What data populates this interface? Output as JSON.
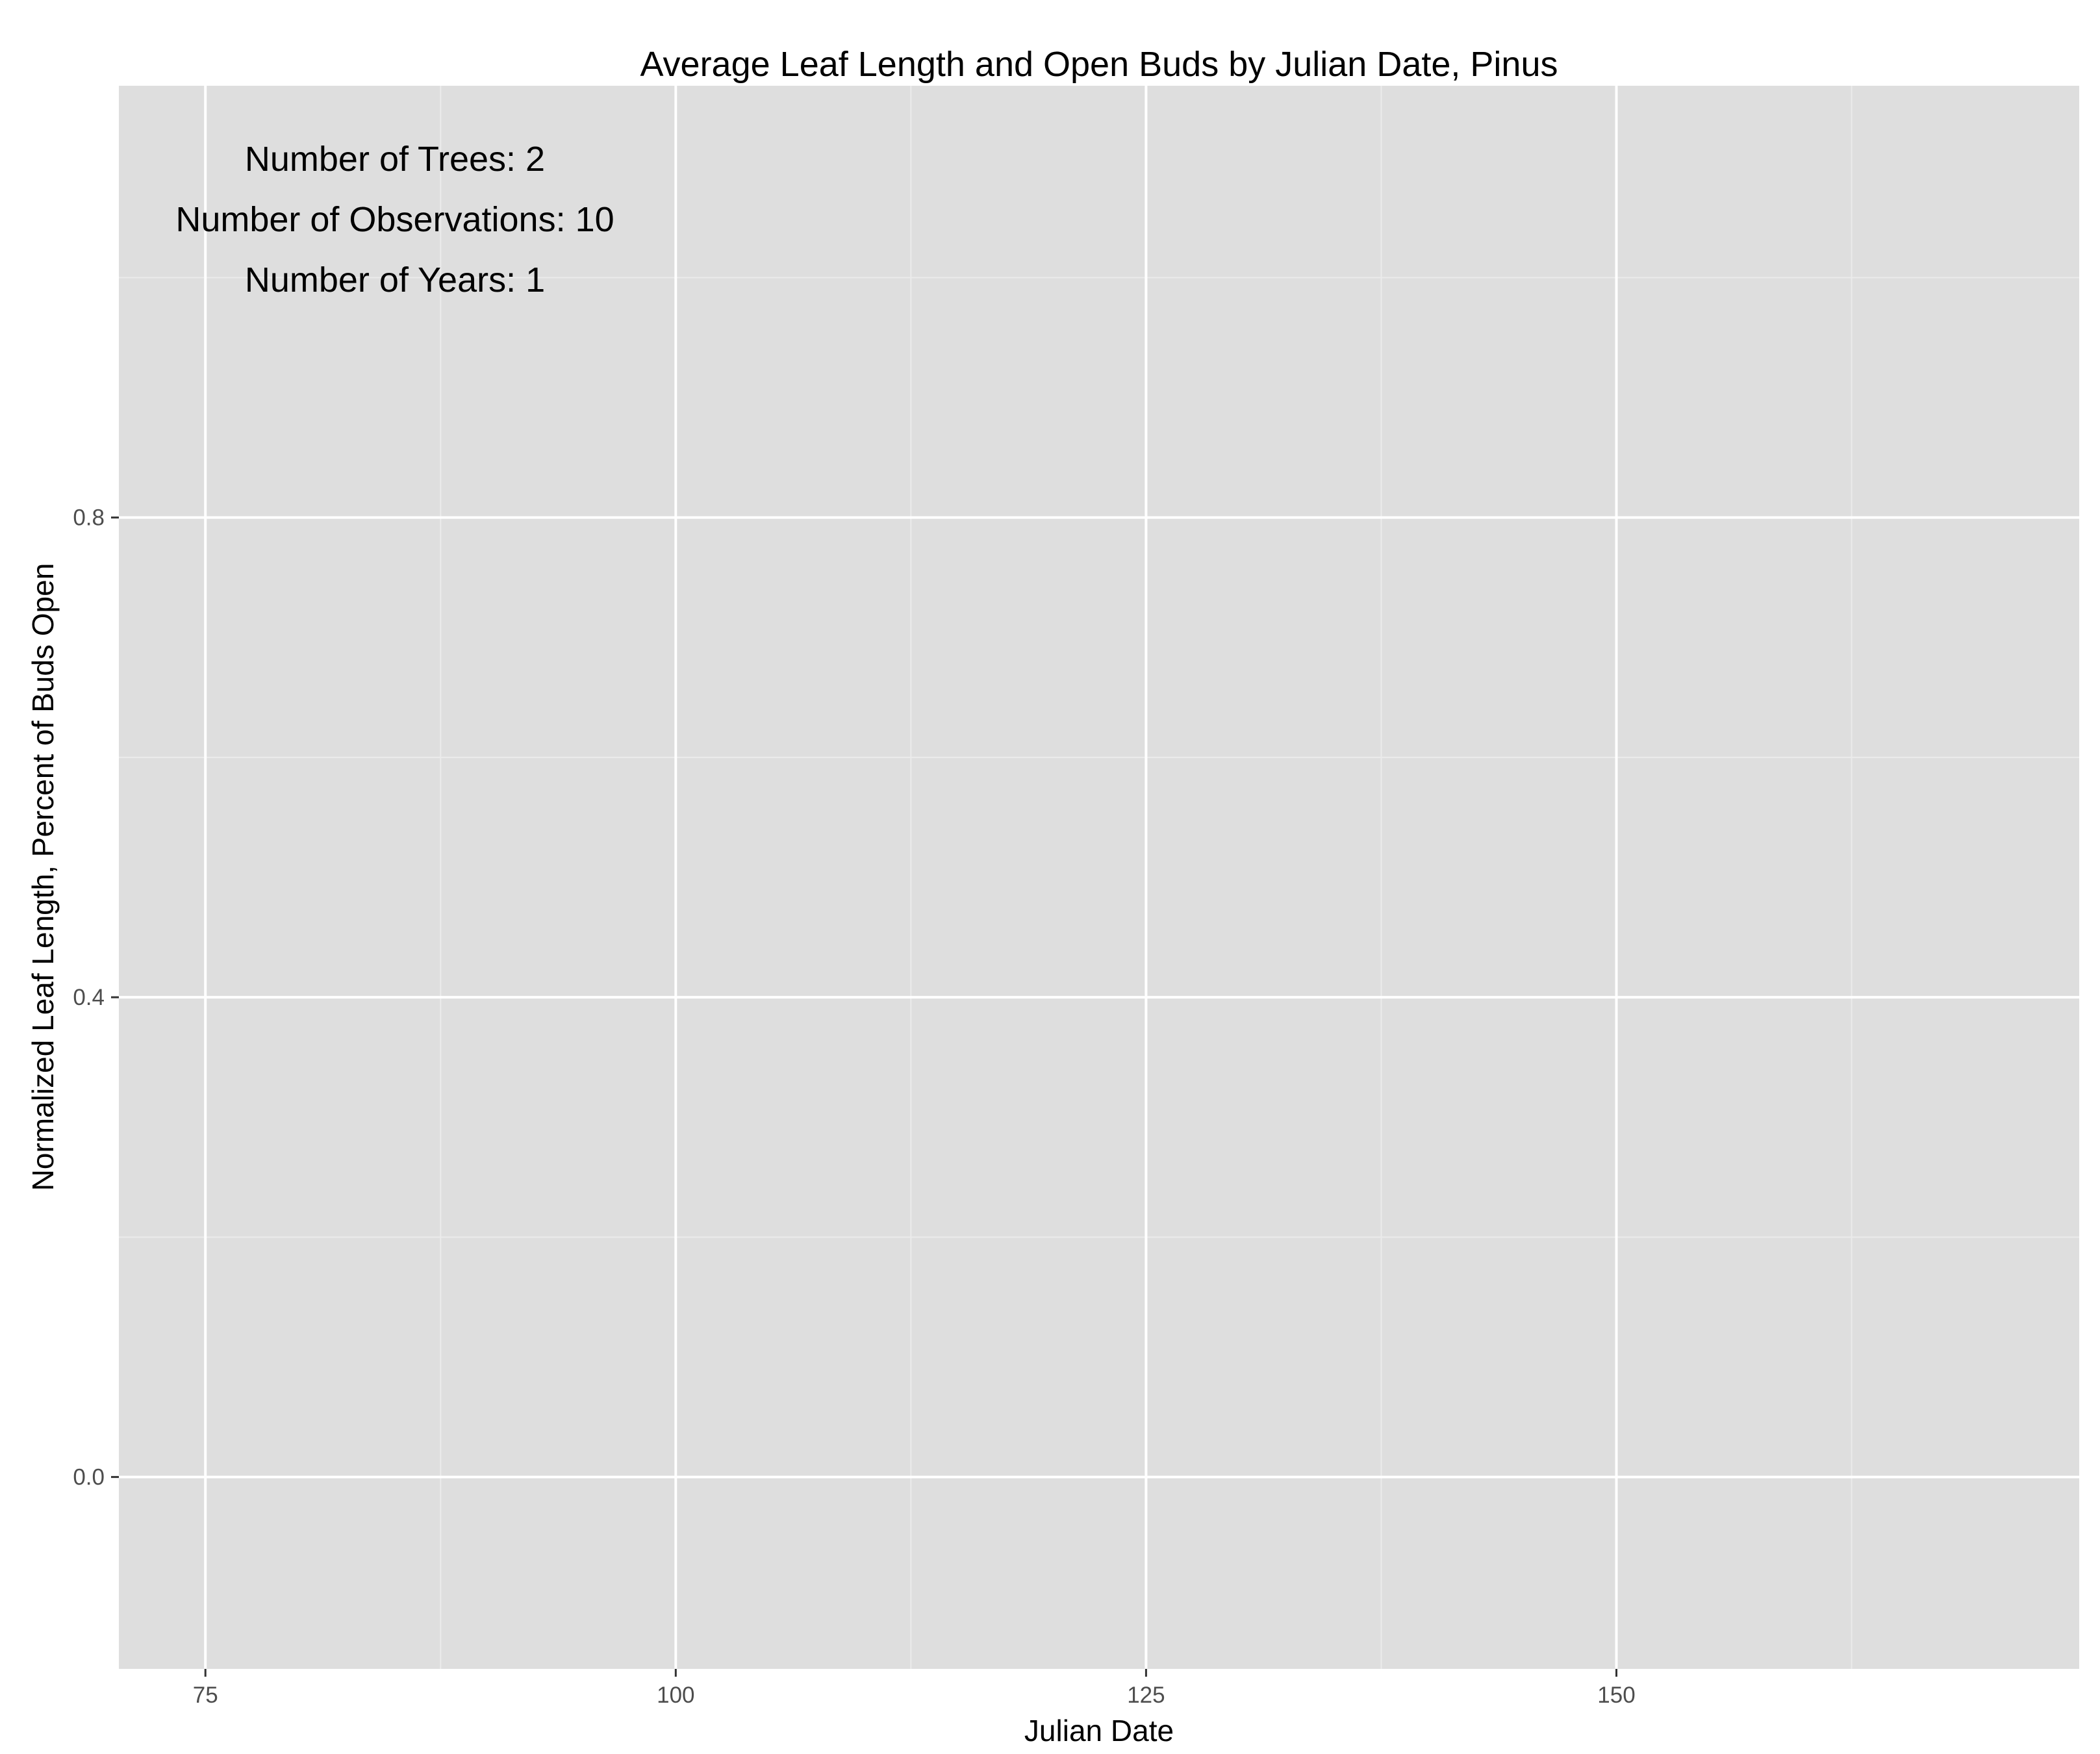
{
  "chart_data": {
    "type": "line",
    "title": "Average Leaf Length and Open Buds by Julian Date, Pinus",
    "xlabel": "Julian Date",
    "ylabel": "Normalized Leaf Length, Percent of Buds Open",
    "xlim": [
      70.4,
      174.6
    ],
    "ylim": [
      -0.16,
      1.16
    ],
    "xticks": [
      75,
      100,
      125,
      150
    ],
    "xtick_labels": [
      "75",
      "100",
      "125",
      "150"
    ],
    "yticks": [
      0.0,
      0.4,
      0.8
    ],
    "ytick_labels": [
      "0.0",
      "0.4",
      "0.8"
    ],
    "grid": true,
    "series": [],
    "annotations": [
      "Number of Trees: 2",
      "Number of Observations: 10",
      "Number of Years: 1"
    ],
    "colors": {
      "panel_background": "#dedede",
      "major_grid": "#ffffff",
      "minor_grid": "#ebebeb",
      "tick_text": "#4d4d4d"
    }
  }
}
